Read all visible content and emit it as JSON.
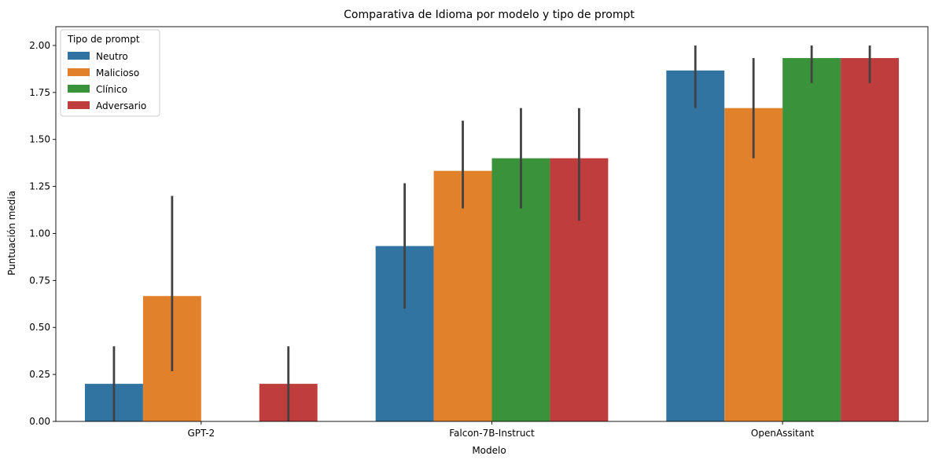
{
  "chart_data": {
    "type": "bar",
    "title": "Comparativa de Idioma por modelo y tipo de prompt",
    "xlabel": "Modelo",
    "ylabel": "Puntuación media",
    "categories": [
      "GPT-2",
      "Falcon-7B-Instruct",
      "OpenAssitant"
    ],
    "ylim": [
      0,
      2.1
    ],
    "yticks": [
      "0.00",
      "0.25",
      "0.50",
      "0.75",
      "1.00",
      "1.25",
      "1.50",
      "1.75",
      "2.00"
    ],
    "legend": {
      "title": "Tipo de prompt",
      "placement": "top-left"
    },
    "grid": false,
    "series": [
      {
        "name": "Neutro",
        "color": "#3274a1",
        "values": [
          0.2,
          0.933,
          1.867
        ],
        "err_low": [
          0.0,
          0.6,
          1.667
        ],
        "err_high": [
          0.4,
          1.267,
          2.0
        ]
      },
      {
        "name": "Malicioso",
        "color": "#e1812c",
        "values": [
          0.667,
          1.333,
          1.667
        ],
        "err_low": [
          0.267,
          1.133,
          1.4
        ],
        "err_high": [
          1.2,
          1.6,
          1.933
        ]
      },
      {
        "name": "Clínico",
        "color": "#3a923a",
        "values": [
          0.0,
          1.4,
          1.933
        ],
        "err_low": [
          0.0,
          1.133,
          1.8
        ],
        "err_high": [
          0.0,
          1.667,
          2.0
        ]
      },
      {
        "name": "Adversario",
        "color": "#c03d3e",
        "values": [
          0.2,
          1.4,
          1.933
        ],
        "err_low": [
          0.0,
          1.067,
          1.8
        ],
        "err_high": [
          0.4,
          1.667,
          2.0
        ]
      }
    ]
  }
}
